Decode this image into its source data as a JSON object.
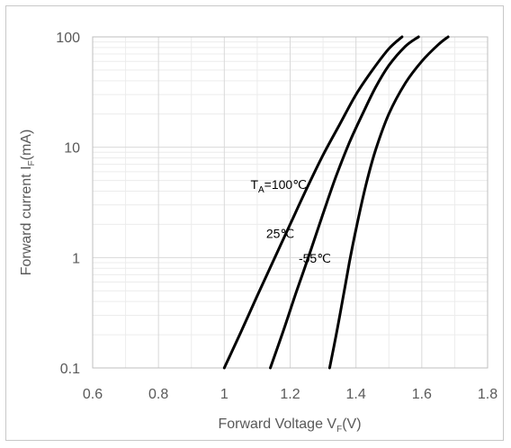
{
  "chart_data": {
    "type": "line",
    "xlabel": {
      "main": "Forward Voltage V",
      "sub": "F",
      "suffix": "(V)"
    },
    "ylabel": {
      "main": "Forward current I",
      "sub": "F",
      "suffix": "(mA)"
    },
    "xlim": [
      0.6,
      1.8
    ],
    "ylim": [
      0.1,
      100
    ],
    "yscale": "log",
    "grid": true,
    "x_ticks": [
      "0.6",
      "0.8",
      "1",
      "1.2",
      "1.4",
      "1.6",
      "1.8"
    ],
    "y_ticks": [
      "0.1",
      "1",
      "10",
      "100"
    ],
    "series": [
      {
        "name": "T_A=100℃",
        "label": {
          "main": "T",
          "sub": "A",
          "suffix": "=100℃"
        },
        "x": [
          1.0,
          1.05,
          1.1,
          1.15,
          1.2,
          1.25,
          1.3,
          1.35,
          1.4,
          1.45,
          1.5,
          1.54
        ],
        "y": [
          0.1,
          0.21,
          0.45,
          0.95,
          2.0,
          4.2,
          8.5,
          16,
          30,
          50,
          78,
          100
        ]
      },
      {
        "name": "25℃",
        "label": {
          "main": "25℃",
          "sub": "",
          "suffix": ""
        },
        "x": [
          1.14,
          1.18,
          1.22,
          1.26,
          1.3,
          1.34,
          1.38,
          1.42,
          1.46,
          1.5,
          1.55,
          1.59
        ],
        "y": [
          0.1,
          0.22,
          0.5,
          1.1,
          2.5,
          5.5,
          11,
          20,
          35,
          55,
          82,
          100
        ]
      },
      {
        "name": "-55℃",
        "label": {
          "main": "-55℃",
          "sub": "",
          "suffix": ""
        },
        "x": [
          1.32,
          1.34,
          1.36,
          1.38,
          1.4,
          1.43,
          1.46,
          1.5,
          1.55,
          1.6,
          1.65,
          1.68
        ],
        "y": [
          0.1,
          0.2,
          0.42,
          0.9,
          1.8,
          4.5,
          9.5,
          20,
          38,
          60,
          85,
          100
        ]
      }
    ],
    "label_anchor": [
      {
        "x": 1.165,
        "y": 4.2
      },
      {
        "x": 1.17,
        "y": 1.5
      },
      {
        "x": 1.275,
        "y": 0.9
      }
    ],
    "colors": {
      "line": "#000000",
      "grid": "#d9d9d9",
      "axis": "#bfbfbf",
      "text": "#595959"
    }
  }
}
